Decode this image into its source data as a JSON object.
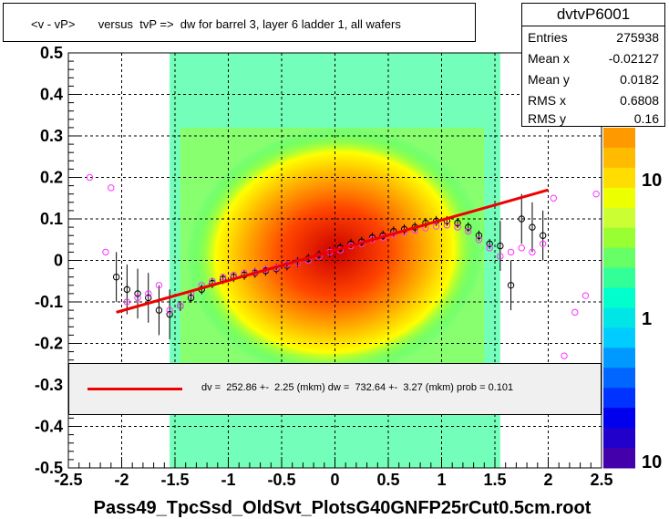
{
  "chart_data": {
    "type": "scatter",
    "title": "<v - vP>       versus  tvP =>  dw for barrel 3, layer 6 ladder 1, all wafers",
    "xlabel": "Pass49_TpcSsd_OldSvt_PlotsG40GNFP25rCut0.5cm.root",
    "ylabel": "",
    "xlim": [
      -2.5,
      2.5
    ],
    "ylim": [
      -0.5,
      0.5
    ],
    "x_ticks": [
      "-2.5",
      "-2",
      "-1.5",
      "-1",
      "-0.5",
      "0",
      "0.5",
      "1",
      "1.5",
      "2",
      "2.5"
    ],
    "y_ticks": [
      "-0.5",
      "-0.4",
      "-0.3",
      "-0.2",
      "-0.1",
      "0",
      "0.1",
      "0.2",
      "0.3",
      "0.4",
      "0.5"
    ],
    "grid": true,
    "colorbar": {
      "scale": "log",
      "labels": [
        "10",
        "1",
        "10"
      ]
    },
    "stats": {
      "name": "dvtvP6001",
      "rows": [
        {
          "label": "Entries",
          "value": "275938"
        },
        {
          "label": "Mean x",
          "value": "-0.02127"
        },
        {
          "label": "Mean y",
          "value": "0.0182"
        },
        {
          "label": "RMS x",
          "value": "0.6808"
        },
        {
          "label": "RMS y",
          "value": "0.16"
        }
      ]
    },
    "fit": {
      "color": "#ee0000",
      "x": [
        -2.05,
        2.0
      ],
      "y": [
        -0.125,
        0.17
      ],
      "legend_text": "dv =  252.86 +-  2.25 (mkm) dw =  732.64 +-  3.27 (mkm) prob = 0.101"
    },
    "series": [
      {
        "marker": "black-open-circle",
        "color": "#000000",
        "x": [
          -2.05,
          -1.95,
          -1.85,
          -1.75,
          -1.65,
          -1.55,
          -1.45,
          -1.35,
          -1.25,
          -1.15,
          -1.05,
          -0.95,
          -0.85,
          -0.75,
          -0.65,
          -0.55,
          -0.45,
          -0.35,
          -0.25,
          -0.15,
          -0.05,
          0.05,
          0.15,
          0.25,
          0.35,
          0.45,
          0.55,
          0.65,
          0.75,
          0.85,
          0.95,
          1.05,
          1.15,
          1.25,
          1.35,
          1.45,
          1.55,
          1.65,
          1.75,
          1.85,
          1.95
        ],
        "y": [
          -0.04,
          -0.07,
          -0.08,
          -0.09,
          -0.12,
          -0.13,
          -0.11,
          -0.09,
          -0.07,
          -0.055,
          -0.045,
          -0.04,
          -0.035,
          -0.03,
          -0.025,
          -0.02,
          -0.012,
          -0.004,
          0.004,
          0.012,
          0.02,
          0.03,
          0.04,
          0.045,
          0.055,
          0.06,
          0.07,
          0.075,
          0.08,
          0.09,
          0.095,
          0.095,
          0.09,
          0.08,
          0.06,
          0.04,
          0.035,
          -0.06,
          0.1,
          0.08,
          0.06
        ]
      },
      {
        "marker": "magenta-open-circle",
        "color": "#ff33ff",
        "x": [
          -2.3,
          -2.15,
          -2.1,
          -1.95,
          -1.85,
          -1.75,
          -1.65,
          -1.55,
          -1.45,
          -1.35,
          -1.25,
          -1.15,
          -1.05,
          -0.95,
          -0.85,
          -0.75,
          -0.65,
          -0.55,
          -0.45,
          -0.35,
          -0.25,
          -0.15,
          -0.05,
          0.05,
          0.15,
          0.25,
          0.35,
          0.45,
          0.55,
          0.65,
          0.75,
          0.85,
          0.95,
          1.05,
          1.15,
          1.25,
          1.35,
          1.45,
          1.55,
          1.65,
          1.75,
          1.85,
          1.95,
          2.05,
          2.15,
          2.25,
          2.35,
          2.45
        ],
        "y": [
          0.2,
          0.02,
          0.175,
          -0.1,
          -0.09,
          -0.08,
          -0.06,
          -0.12,
          -0.11,
          -0.08,
          -0.06,
          -0.05,
          -0.04,
          -0.035,
          -0.03,
          -0.028,
          -0.022,
          -0.018,
          -0.01,
          -0.005,
          0.0,
          0.01,
          0.02,
          0.025,
          0.035,
          0.04,
          0.05,
          0.055,
          0.062,
          0.068,
          0.072,
          0.078,
          0.082,
          0.085,
          0.08,
          0.07,
          0.05,
          0.03,
          0.01,
          0.02,
          0.03,
          0.02,
          0.04,
          0.15,
          -0.23,
          -0.125,
          -0.085,
          0.16
        ]
      }
    ],
    "colors": {
      "heat_low": "#00ff80",
      "heat_mid": "#ffff00",
      "heat_high": "#cc0000"
    }
  }
}
